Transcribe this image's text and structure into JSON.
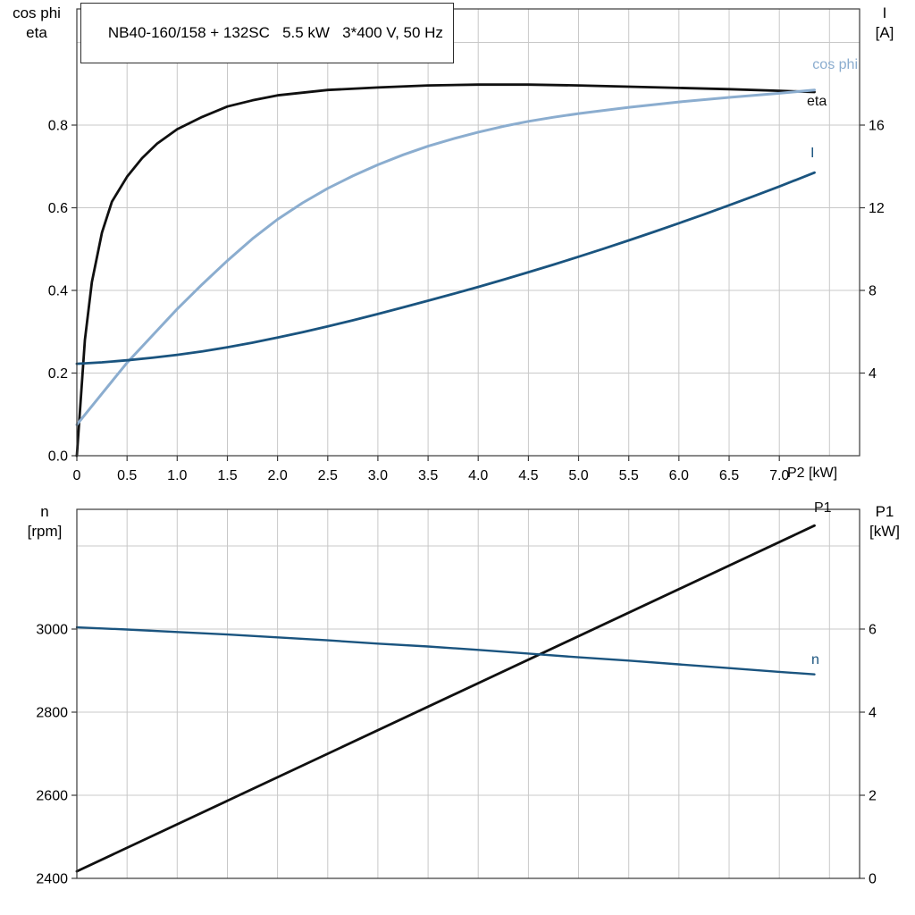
{
  "style": {
    "background": "#ffffff",
    "grid_color": "#c8c8c8",
    "frame_color": "#3a3a3a",
    "text_color": "#000000",
    "eta_color": "#101010",
    "cosphi_color": "#8badcf",
    "current_color": "#1a547f"
  },
  "chart_data": [
    {
      "id": "motor-efficiency-chart",
      "type": "line",
      "title": "NB40-160/158 + 132SC   5.5 kW   3*400 V, 50 Hz",
      "x_axis": {
        "label": "P2 [kW]",
        "min": 0,
        "max": 7.8,
        "ticks": [
          0,
          0.5,
          1.0,
          1.5,
          2.0,
          2.5,
          3.0,
          3.5,
          4.0,
          4.5,
          5.0,
          5.5,
          6.0,
          6.5,
          7.0
        ],
        "tick_labels": [
          "0",
          "0.5",
          "1.0",
          "1.5",
          "2.0",
          "2.5",
          "3.0",
          "3.5",
          "4.0",
          "4.5",
          "5.0",
          "5.5",
          "6.0",
          "6.5",
          "7.0"
        ],
        "gridlines": [
          0.5,
          1.0,
          1.5,
          2.0,
          2.5,
          3.0,
          3.5,
          4.0,
          4.5,
          5.0,
          5.5,
          6.0,
          6.5,
          7.0,
          7.5
        ]
      },
      "y_left": {
        "label_lines": [
          "cos phi",
          "eta"
        ],
        "min": 0,
        "max": 1.0811,
        "ticks": [
          0,
          0.2,
          0.4,
          0.6,
          0.8
        ],
        "tick_labels": [
          "0.0",
          "0.2",
          "0.4",
          "0.6",
          "0.8"
        ],
        "gridlines": [
          0.2,
          0.4,
          0.6,
          0.8,
          1.0
        ]
      },
      "y_right": {
        "label_lines": [
          "I",
          "[A]"
        ],
        "min": 0,
        "max": 21.62,
        "ticks": [
          4,
          8,
          12,
          16
        ],
        "tick_labels": [
          "4",
          "8",
          "12",
          "16"
        ],
        "gridlines": []
      },
      "series": [
        {
          "name": "eta",
          "label": "eta",
          "axis": "left",
          "color": "#101010",
          "width": 2.8,
          "points": [
            [
              0,
              0
            ],
            [
              0.08,
              0.28
            ],
            [
              0.15,
              0.42
            ],
            [
              0.25,
              0.54
            ],
            [
              0.35,
              0.615
            ],
            [
              0.5,
              0.675
            ],
            [
              0.65,
              0.72
            ],
            [
              0.8,
              0.755
            ],
            [
              1.0,
              0.79
            ],
            [
              1.25,
              0.82
            ],
            [
              1.5,
              0.845
            ],
            [
              1.75,
              0.86
            ],
            [
              2.0,
              0.872
            ],
            [
              2.5,
              0.885
            ],
            [
              3.0,
              0.891
            ],
            [
              3.5,
              0.896
            ],
            [
              4.0,
              0.898
            ],
            [
              4.5,
              0.898
            ],
            [
              5.0,
              0.896
            ],
            [
              5.5,
              0.893
            ],
            [
              6.0,
              0.89
            ],
            [
              6.5,
              0.887
            ],
            [
              7.0,
              0.883
            ],
            [
              7.35,
              0.88
            ]
          ]
        },
        {
          "name": "cos phi",
          "label": "cos phi",
          "axis": "left",
          "color": "#8badcf",
          "width": 3,
          "points": [
            [
              0,
              0.075
            ],
            [
              0.1,
              0.105
            ],
            [
              0.25,
              0.15
            ],
            [
              0.5,
              0.225
            ],
            [
              0.75,
              0.29
            ],
            [
              1.0,
              0.355
            ],
            [
              1.25,
              0.415
            ],
            [
              1.5,
              0.472
            ],
            [
              1.75,
              0.525
            ],
            [
              2.0,
              0.572
            ],
            [
              2.25,
              0.612
            ],
            [
              2.5,
              0.647
            ],
            [
              2.75,
              0.677
            ],
            [
              3.0,
              0.704
            ],
            [
              3.25,
              0.728
            ],
            [
              3.5,
              0.749
            ],
            [
              3.75,
              0.767
            ],
            [
              4.0,
              0.783
            ],
            [
              4.25,
              0.797
            ],
            [
              4.5,
              0.809
            ],
            [
              4.75,
              0.819
            ],
            [
              5.0,
              0.828
            ],
            [
              5.5,
              0.843
            ],
            [
              6.0,
              0.856
            ],
            [
              6.5,
              0.867
            ],
            [
              7.0,
              0.877
            ],
            [
              7.35,
              0.885
            ]
          ]
        },
        {
          "name": "I",
          "label": "I",
          "axis": "right",
          "color": "#1a547f",
          "width": 2.8,
          "points": [
            [
              0,
              4.45
            ],
            [
              0.25,
              4.52
            ],
            [
              0.5,
              4.62
            ],
            [
              0.75,
              4.74
            ],
            [
              1.0,
              4.88
            ],
            [
              1.25,
              5.05
            ],
            [
              1.5,
              5.25
            ],
            [
              1.75,
              5.47
            ],
            [
              2.0,
              5.72
            ],
            [
              2.25,
              5.98
            ],
            [
              2.5,
              6.26
            ],
            [
              2.75,
              6.55
            ],
            [
              3.0,
              6.86
            ],
            [
              3.25,
              7.18
            ],
            [
              3.5,
              7.5
            ],
            [
              3.75,
              7.83
            ],
            [
              4.0,
              8.17
            ],
            [
              4.25,
              8.52
            ],
            [
              4.5,
              8.88
            ],
            [
              4.75,
              9.25
            ],
            [
              5.0,
              9.63
            ],
            [
              5.25,
              10.02
            ],
            [
              5.5,
              10.42
            ],
            [
              5.75,
              10.83
            ],
            [
              6.0,
              11.25
            ],
            [
              6.25,
              11.68
            ],
            [
              6.5,
              12.12
            ],
            [
              6.75,
              12.57
            ],
            [
              7.0,
              13.03
            ],
            [
              7.35,
              13.7
            ]
          ]
        }
      ]
    },
    {
      "id": "speed-power-chart",
      "type": "line",
      "title": "",
      "x_axis": {
        "label": "",
        "min": 0,
        "max": 7.8,
        "ticks": [],
        "tick_labels": [],
        "gridlines": [
          0.5,
          1.0,
          1.5,
          2.0,
          2.5,
          3.0,
          3.5,
          4.0,
          4.5,
          5.0,
          5.5,
          6.0,
          6.5,
          7.0,
          7.5
        ]
      },
      "y_left": {
        "label_lines": [
          "n",
          "[rpm]"
        ],
        "min": 2400,
        "max": 3288.2,
        "ticks": [
          2400,
          2600,
          2800,
          3000
        ],
        "tick_labels": [
          "2400",
          "2600",
          "2800",
          "3000"
        ],
        "gridlines": [
          2600,
          2800,
          3000,
          3200
        ]
      },
      "y_right": {
        "label_lines": [
          "P1",
          "[kW]"
        ],
        "min": 0,
        "max": 8.882,
        "ticks": [
          0,
          2,
          4,
          6
        ],
        "tick_labels": [
          "0",
          "2",
          "4",
          "6"
        ],
        "gridlines": []
      },
      "series": [
        {
          "name": "P1",
          "label": "P1",
          "axis": "right",
          "color": "#101010",
          "width": 2.8,
          "points": [
            [
              0,
              0.17
            ],
            [
              7.35,
              8.49
            ]
          ]
        },
        {
          "name": "n",
          "label": "n",
          "axis": "left",
          "color": "#1a547f",
          "width": 2.4,
          "points": [
            [
              0,
              3004
            ],
            [
              0.5,
              2999
            ],
            [
              1,
              2993
            ],
            [
              1.5,
              2987
            ],
            [
              2,
              2980
            ],
            [
              2.5,
              2973
            ],
            [
              3,
              2965
            ],
            [
              3.5,
              2958
            ],
            [
              4,
              2950
            ],
            [
              4.5,
              2941
            ],
            [
              5,
              2932
            ],
            [
              5.5,
              2924
            ],
            [
              6,
              2915
            ],
            [
              6.5,
              2906
            ],
            [
              7,
              2897
            ],
            [
              7.35,
              2891
            ]
          ]
        }
      ]
    }
  ]
}
